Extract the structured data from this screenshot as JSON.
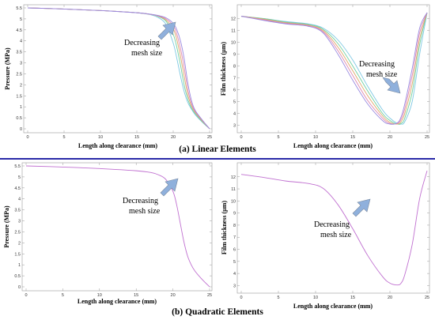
{
  "captions": {
    "linear": "(a) Linear Elements",
    "quadratic": "(b) Quadratic Elements"
  },
  "colors": {
    "series": [
      "#7ec8e3",
      "#6fd0a0",
      "#e0a868",
      "#e088b0",
      "#9a8ae0"
    ],
    "quadratic_line": "#c070d0",
    "arrow_fill": "#8fb0dc",
    "arrow_stroke": "#7a8aa0",
    "divider": "#2a2aa8"
  },
  "chart_data": [
    {
      "id": "a-pressure",
      "type": "line",
      "xlabel": "Length along clearance (mm)",
      "ylabel": "Pressure (MPa)",
      "xlim": [
        0,
        25
      ],
      "ylim": [
        0,
        5.5
      ],
      "xticks": [
        "0",
        "5",
        "10",
        "15",
        "20",
        "25"
      ],
      "yticks": [
        "0",
        "0.5",
        "1",
        "1.5",
        "2",
        "2.5",
        "3",
        "3.5",
        "4",
        "4.5",
        "5",
        "5.5"
      ],
      "annotation": [
        "Decreasing",
        "mesh size"
      ],
      "series": [
        {
          "x": [
            0,
            5,
            10,
            15,
            17,
            18,
            19,
            20,
            20.5,
            21,
            21.5,
            22,
            22.5,
            23,
            24,
            25
          ],
          "y": [
            5.5,
            5.45,
            5.38,
            5.28,
            5.18,
            5.05,
            4.75,
            3.9,
            3.2,
            2.4,
            1.7,
            1.2,
            0.9,
            0.65,
            0.3,
            0.0
          ]
        },
        {
          "x": [
            0,
            5,
            10,
            15,
            17,
            18,
            19,
            20,
            20.5,
            21,
            21.5,
            22,
            22.5,
            23,
            24,
            25
          ],
          "y": [
            5.5,
            5.45,
            5.38,
            5.28,
            5.2,
            5.1,
            4.9,
            4.3,
            3.7,
            2.9,
            2.0,
            1.35,
            0.95,
            0.7,
            0.32,
            0.0
          ]
        },
        {
          "x": [
            0,
            5,
            10,
            15,
            17,
            18,
            19,
            20,
            20.5,
            21,
            21.5,
            22,
            22.5,
            23,
            24,
            25
          ],
          "y": [
            5.5,
            5.45,
            5.38,
            5.28,
            5.2,
            5.12,
            4.95,
            4.55,
            4.05,
            3.3,
            2.4,
            1.55,
            1.05,
            0.75,
            0.35,
            0.0
          ]
        },
        {
          "x": [
            0,
            5,
            10,
            15,
            17,
            18,
            19,
            20,
            20.5,
            21,
            21.5,
            22,
            22.5,
            23,
            24,
            25
          ],
          "y": [
            5.5,
            5.45,
            5.38,
            5.28,
            5.2,
            5.13,
            5.0,
            4.7,
            4.3,
            3.65,
            2.8,
            1.8,
            1.15,
            0.8,
            0.38,
            0.0
          ]
        },
        {
          "x": [
            0,
            5,
            10,
            15,
            17,
            18,
            19,
            20,
            20.5,
            21,
            21.5,
            22,
            22.5,
            23,
            24,
            25
          ],
          "y": [
            5.5,
            5.45,
            5.38,
            5.28,
            5.21,
            5.15,
            5.05,
            4.8,
            4.5,
            4.0,
            3.2,
            2.1,
            1.3,
            0.85,
            0.4,
            0.0
          ]
        }
      ]
    },
    {
      "id": "a-film",
      "type": "line",
      "xlabel": "Length along clearance (mm)",
      "ylabel": "Film thickness (µm)",
      "xlim": [
        0,
        25
      ],
      "ylim": [
        2.7,
        12.9
      ],
      "xticks": [
        "0",
        "5",
        "10",
        "15",
        "20",
        "25"
      ],
      "yticks": [
        "3",
        "4",
        "5",
        "6",
        "7",
        "8",
        "9",
        "10",
        "11",
        "12"
      ],
      "annotation": [
        "Decreasing",
        "mesh size"
      ],
      "series": [
        {
          "x": [
            0,
            3,
            6,
            9,
            11,
            13,
            15,
            17,
            19,
            20,
            21,
            21.5,
            22,
            23,
            24,
            25
          ],
          "y": [
            12.2,
            12.0,
            11.75,
            11.55,
            11.2,
            10.2,
            8.5,
            6.3,
            4.3,
            3.6,
            3.15,
            3.1,
            3.3,
            5.0,
            9.0,
            12.5
          ]
        },
        {
          "x": [
            0,
            3,
            6,
            9,
            11,
            13,
            15,
            17,
            19,
            20,
            21,
            21.5,
            22,
            23,
            24,
            25
          ],
          "y": [
            12.2,
            12.0,
            11.7,
            11.5,
            11.1,
            9.9,
            8.0,
            5.9,
            4.0,
            3.4,
            3.1,
            3.15,
            3.6,
            5.8,
            9.8,
            12.5
          ]
        },
        {
          "x": [
            0,
            3,
            6,
            9,
            11,
            13,
            15,
            17,
            19,
            20,
            21,
            21.5,
            22,
            23,
            24,
            25
          ],
          "y": [
            12.2,
            11.95,
            11.65,
            11.45,
            11.0,
            9.6,
            7.6,
            5.5,
            3.8,
            3.25,
            3.1,
            3.3,
            4.0,
            6.5,
            10.3,
            12.5
          ]
        },
        {
          "x": [
            0,
            3,
            6,
            9,
            11,
            13,
            15,
            17,
            19,
            20,
            21,
            21.5,
            22,
            23,
            24,
            25
          ],
          "y": [
            12.2,
            11.9,
            11.6,
            11.4,
            10.9,
            9.3,
            7.2,
            5.1,
            3.6,
            3.15,
            3.15,
            3.5,
            4.4,
            7.2,
            10.8,
            12.5
          ]
        },
        {
          "x": [
            0,
            3,
            6,
            9,
            11,
            13,
            15,
            17,
            19,
            20,
            21,
            21.5,
            22,
            23,
            24,
            25
          ],
          "y": [
            12.2,
            11.85,
            11.55,
            11.35,
            10.8,
            9.0,
            6.8,
            4.8,
            3.4,
            3.1,
            3.2,
            3.7,
            4.8,
            7.8,
            11.2,
            12.5
          ]
        }
      ]
    },
    {
      "id": "b-pressure",
      "type": "line",
      "xlabel": "Length along clearance (mm)",
      "ylabel": "Pressure (MPa)",
      "xlim": [
        0,
        25
      ],
      "ylim": [
        0,
        5.5
      ],
      "xticks": [
        "0",
        "5",
        "10",
        "15",
        "20",
        "25"
      ],
      "yticks": [
        "0",
        "0.5",
        "1",
        "1.5",
        "2",
        "2.5",
        "3",
        "3.5",
        "4",
        "4.5",
        "5",
        "5.5"
      ],
      "annotation": [
        "Decreasing",
        "mesh size"
      ],
      "series": [
        {
          "x": [
            0,
            5,
            10,
            15,
            17,
            18,
            19,
            20,
            20.5,
            21,
            21.5,
            22,
            22.5,
            23,
            24,
            25
          ],
          "y": [
            5.5,
            5.45,
            5.38,
            5.28,
            5.2,
            5.1,
            4.9,
            4.35,
            3.75,
            2.9,
            2.05,
            1.4,
            1.0,
            0.72,
            0.33,
            0.0
          ]
        }
      ]
    },
    {
      "id": "b-film",
      "type": "line",
      "xlabel": "Length along clearance (mm)",
      "ylabel": "Film thickness (µm)",
      "xlim": [
        0,
        25
      ],
      "ylim": [
        2.7,
        12.9
      ],
      "xticks": [
        "0",
        "5",
        "10",
        "15",
        "20",
        "25"
      ],
      "yticks": [
        "3",
        "4",
        "5",
        "6",
        "7",
        "8",
        "9",
        "10",
        "11",
        "12"
      ],
      "annotation": [
        "Decreasing",
        "mesh size"
      ],
      "series": [
        {
          "x": [
            0,
            3,
            6,
            9,
            11,
            13,
            15,
            17,
            19,
            20,
            21,
            21.5,
            22,
            23,
            24,
            25
          ],
          "y": [
            12.2,
            11.95,
            11.65,
            11.45,
            11.05,
            9.7,
            7.7,
            5.5,
            3.75,
            3.2,
            3.05,
            3.2,
            3.9,
            6.4,
            10.2,
            12.5
          ]
        }
      ]
    }
  ]
}
